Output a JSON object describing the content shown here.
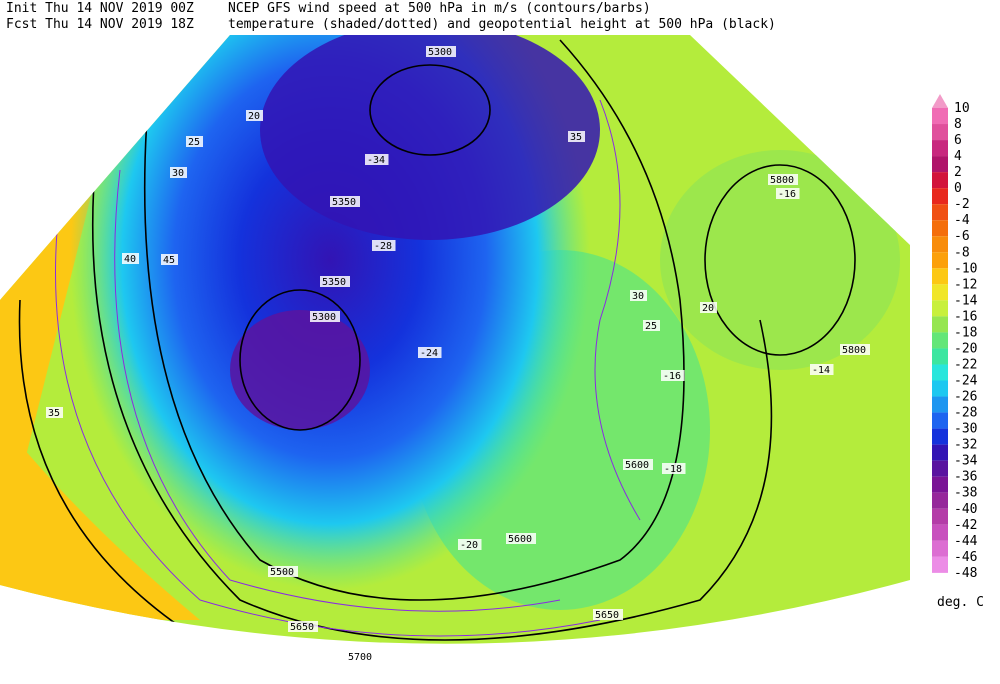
{
  "header": {
    "init": "Init  Thu 14 NOV 2019 00Z",
    "fcst": "Fcst Thu 14 NOV 2019 18Z",
    "title_line1": "NCEP GFS wind speed at 500 hPa in m/s (contours/barbs)",
    "title_line2": "temperature (shaded/dotted) and geopotential height at 500 hPa (black)"
  },
  "legend": {
    "ticks": [
      10,
      8,
      6,
      4,
      2,
      0,
      -2,
      -4,
      -6,
      -8,
      -10,
      -12,
      -14,
      -16,
      -18,
      -20,
      -22,
      -24,
      -26,
      -28,
      -30,
      -32,
      -34,
      -36,
      -38,
      -40,
      -42,
      -44,
      -46,
      -48
    ],
    "colors": [
      "#f29bc8",
      "#f06cb4",
      "#e0509c",
      "#c8287e",
      "#b0146a",
      "#d2143c",
      "#e8281e",
      "#f05014",
      "#f46e0a",
      "#f88c0a",
      "#fca00a",
      "#fcc814",
      "#f0e628",
      "#c8f03c",
      "#96e650",
      "#64e678",
      "#3ce6a0",
      "#28e6dc",
      "#1ec8f0",
      "#1e96f0",
      "#1e64f0",
      "#1432dc",
      "#3214b4",
      "#5a14a0",
      "#7a1496",
      "#96289b",
      "#b43ca8",
      "#c850be",
      "#dc6ed2",
      "#ec8ce6"
    ],
    "unit": "deg. C"
  },
  "map_labels": {
    "height": [
      "5300",
      "5350",
      "5350",
      "5300",
      "5600",
      "5600",
      "5800",
      "5800",
      "5500",
      "5650",
      "5700",
      "5650"
    ],
    "temperature": [
      "-34",
      "-28",
      "-24",
      "-16",
      "-16",
      "-14",
      "-18",
      "-20"
    ],
    "wind": [
      "25",
      "30",
      "35",
      "40",
      "45",
      "20",
      "30",
      "25",
      "20",
      "35"
    ]
  }
}
